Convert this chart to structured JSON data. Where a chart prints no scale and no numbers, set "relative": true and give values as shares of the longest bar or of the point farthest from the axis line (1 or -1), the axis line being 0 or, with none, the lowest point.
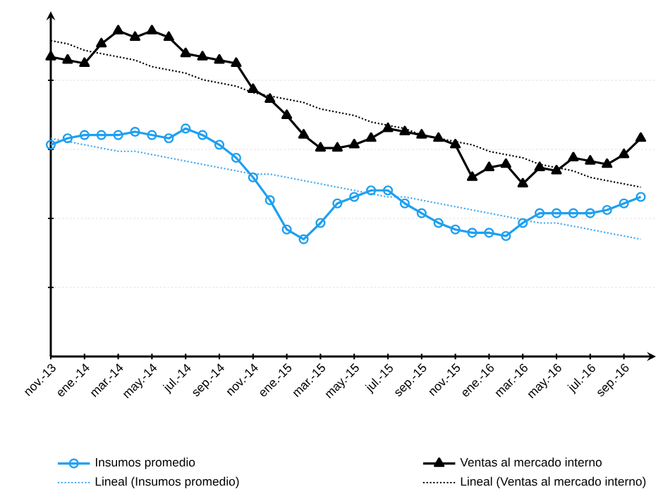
{
  "chart_data": {
    "type": "line",
    "relative": true,
    "grid": "y",
    "legend": "bottom",
    "categories": [
      "nov.-13",
      null,
      "ene.-14",
      null,
      "mar.-14",
      null,
      "may.-14",
      null,
      "jul.-14",
      null,
      "sep.-14",
      null,
      "nov.-14",
      null,
      "ene.-15",
      null,
      "mar.-15",
      null,
      "may.-15",
      null,
      "jul.-15",
      null,
      "sep.-15",
      null,
      "nov.-15",
      null,
      "ene.-16",
      null,
      "mar.-16",
      null,
      "may.-16",
      null,
      "jul.-16",
      null,
      "sep.-16",
      null
    ],
    "series": [
      {
        "name": "Insumos promedio",
        "color": "#1e9ff0",
        "marker": "circle",
        "line_style": "solid",
        "values": [
          0.65,
          0.67,
          0.68,
          0.68,
          0.68,
          0.69,
          0.68,
          0.67,
          0.7,
          0.68,
          0.65,
          0.61,
          0.55,
          0.48,
          0.39,
          0.36,
          0.41,
          0.47,
          0.49,
          0.51,
          0.51,
          0.47,
          0.44,
          0.41,
          0.39,
          0.38,
          0.38,
          0.37,
          0.41,
          0.44,
          0.44,
          0.44,
          0.44,
          0.45,
          0.47,
          0.49
        ]
      },
      {
        "name": "Ventas al mercado interno",
        "color": "#000000",
        "marker": "triangle",
        "line_style": "solid",
        "values": [
          0.92,
          0.91,
          0.9,
          0.96,
          1.0,
          0.98,
          1.0,
          0.98,
          0.93,
          0.92,
          0.91,
          0.9,
          0.82,
          0.79,
          0.74,
          0.68,
          0.64,
          0.64,
          0.65,
          0.67,
          0.7,
          0.69,
          0.68,
          0.67,
          0.65,
          0.55,
          0.58,
          0.59,
          0.53,
          0.58,
          0.57,
          0.61,
          0.6,
          0.59,
          0.62,
          0.67
        ]
      },
      {
        "name": "Lineal (Insumos promedio)",
        "color": "#3fa9f5",
        "marker": "none",
        "line_style": "dotted",
        "values": [
          0.67,
          0.66,
          0.65,
          0.64,
          0.63,
          0.63,
          0.62,
          0.61,
          0.6,
          0.59,
          0.58,
          0.57,
          0.56,
          0.56,
          0.55,
          0.54,
          0.53,
          0.52,
          0.51,
          0.5,
          0.49,
          0.49,
          0.48,
          0.47,
          0.46,
          0.45,
          0.44,
          0.43,
          0.42,
          0.41,
          0.41,
          0.4,
          0.39,
          0.38,
          0.37,
          0.36
        ]
      },
      {
        "name": "Lineal (Ventas al mercado interno)",
        "color": "#000000",
        "marker": "none",
        "line_style": "dotted",
        "values": [
          0.97,
          0.96,
          0.94,
          0.93,
          0.92,
          0.91,
          0.89,
          0.88,
          0.87,
          0.85,
          0.84,
          0.83,
          0.81,
          0.8,
          0.79,
          0.78,
          0.76,
          0.75,
          0.74,
          0.72,
          0.71,
          0.7,
          0.68,
          0.67,
          0.66,
          0.65,
          0.63,
          0.62,
          0.61,
          0.59,
          0.58,
          0.57,
          0.55,
          0.54,
          0.53,
          0.52
        ]
      }
    ]
  }
}
